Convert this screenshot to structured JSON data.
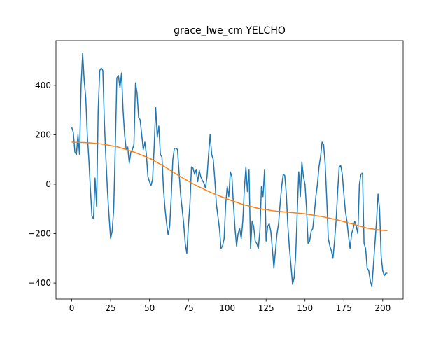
{
  "chart_data": {
    "type": "line",
    "title": "grace_lwe_cm YELCHO",
    "x": [
      0,
      1,
      2,
      3,
      4,
      5,
      6,
      7,
      8,
      9,
      10,
      11,
      12,
      13,
      14,
      15,
      16,
      17,
      18,
      19,
      20,
      21,
      22,
      23,
      24,
      25,
      26,
      27,
      28,
      29,
      30,
      31,
      32,
      33,
      34,
      35,
      36,
      37,
      38,
      39,
      40,
      41,
      42,
      43,
      44,
      45,
      46,
      47,
      48,
      49,
      50,
      51,
      52,
      53,
      54,
      55,
      56,
      57,
      58,
      59,
      60,
      61,
      62,
      63,
      64,
      65,
      66,
      67,
      68,
      69,
      70,
      71,
      72,
      73,
      74,
      75,
      76,
      77,
      78,
      79,
      80,
      81,
      82,
      83,
      84,
      85,
      86,
      87,
      88,
      89,
      90,
      91,
      92,
      93,
      94,
      95,
      96,
      97,
      98,
      99,
      100,
      101,
      102,
      103,
      104,
      105,
      106,
      107,
      108,
      109,
      110,
      111,
      112,
      113,
      114,
      115,
      116,
      117,
      118,
      119,
      120,
      121,
      122,
      123,
      124,
      125,
      126,
      127,
      128,
      129,
      130,
      131,
      132,
      133,
      134,
      135,
      136,
      137,
      138,
      139,
      140,
      141,
      142,
      143,
      144,
      145,
      146,
      147,
      148,
      149,
      150,
      151,
      152,
      153,
      154,
      155,
      156,
      157,
      158,
      159,
      160,
      161,
      162,
      163,
      164,
      165,
      166,
      167,
      168,
      169,
      170,
      171,
      172,
      173,
      174,
      175,
      176,
      177,
      178,
      179,
      180,
      181,
      182,
      183,
      184,
      185,
      186,
      187,
      188,
      189,
      190,
      191,
      192,
      193,
      194,
      195,
      196,
      197,
      198,
      199,
      200,
      201,
      202,
      203
    ],
    "series": [
      {
        "color": "#1f77b4",
        "values": [
          230,
          210,
          130,
          120,
          200,
          120,
          400,
          530,
          420,
          350,
          200,
          100,
          -20,
          -130,
          -140,
          25,
          -90,
          300,
          460,
          470,
          460,
          250,
          100,
          -30,
          -130,
          -220,
          -190,
          -100,
          150,
          430,
          440,
          390,
          450,
          300,
          200,
          140,
          150,
          85,
          130,
          140,
          160,
          410,
          370,
          270,
          260,
          200,
          140,
          170,
          120,
          30,
          10,
          -5,
          20,
          150,
          310,
          190,
          235,
          120,
          110,
          -20,
          -100,
          -160,
          -205,
          -170,
          -50,
          100,
          145,
          145,
          140,
          50,
          -40,
          -100,
          -160,
          -240,
          -280,
          -170,
          -80,
          70,
          65,
          40,
          60,
          10,
          55,
          30,
          15,
          5,
          -15,
          30,
          120,
          200,
          120,
          100,
          20,
          -80,
          -130,
          -180,
          -260,
          -250,
          -220,
          -80,
          -10,
          -50,
          50,
          30,
          -80,
          -180,
          -250,
          -200,
          -180,
          -220,
          -150,
          -20,
          70,
          -30,
          60,
          -260,
          -150,
          -170,
          -230,
          -240,
          -260,
          -190,
          -10,
          -50,
          60,
          -230,
          -170,
          -160,
          -190,
          -260,
          -340,
          -270,
          -200,
          -160,
          -80,
          -10,
          40,
          35,
          -40,
          -170,
          -260,
          -330,
          -405,
          -380,
          -290,
          -120,
          50,
          -50,
          90,
          30,
          0,
          -100,
          -240,
          -230,
          -190,
          -180,
          -120,
          -50,
          0,
          70,
          110,
          170,
          160,
          80,
          -60,
          -220,
          -250,
          -270,
          -300,
          -230,
          -150,
          -30,
          70,
          75,
          40,
          -40,
          -110,
          -150,
          -210,
          -260,
          -200,
          -180,
          -150,
          -170,
          -200,
          0,
          40,
          45,
          -240,
          -260,
          -340,
          -350,
          -390,
          -415,
          -330,
          -240,
          -150,
          -40,
          -100,
          -290,
          -350,
          -370,
          -360,
          -360
        ]
      },
      {
        "color": "#ff7f0e",
        "x": [
          0,
          10,
          20,
          30,
          40,
          50,
          60,
          70,
          80,
          90,
          100,
          110,
          120,
          130,
          140,
          150,
          160,
          170,
          180,
          190,
          200,
          203
        ],
        "values": [
          170,
          168,
          162,
          150,
          130,
          105,
          70,
          30,
          -5,
          -35,
          -60,
          -82,
          -98,
          -108,
          -114,
          -120,
          -130,
          -143,
          -160,
          -178,
          -187,
          -188
        ]
      }
    ],
    "xlim": [
      -10.15,
      213.15
    ],
    "ylim": [
      -465,
      581
    ],
    "xticks": [
      0,
      25,
      50,
      75,
      100,
      125,
      150,
      175,
      200
    ],
    "yticks": [
      {
        "value": -400,
        "label": "−400"
      },
      {
        "value": -200,
        "label": "−200"
      },
      0,
      200,
      400
    ]
  }
}
